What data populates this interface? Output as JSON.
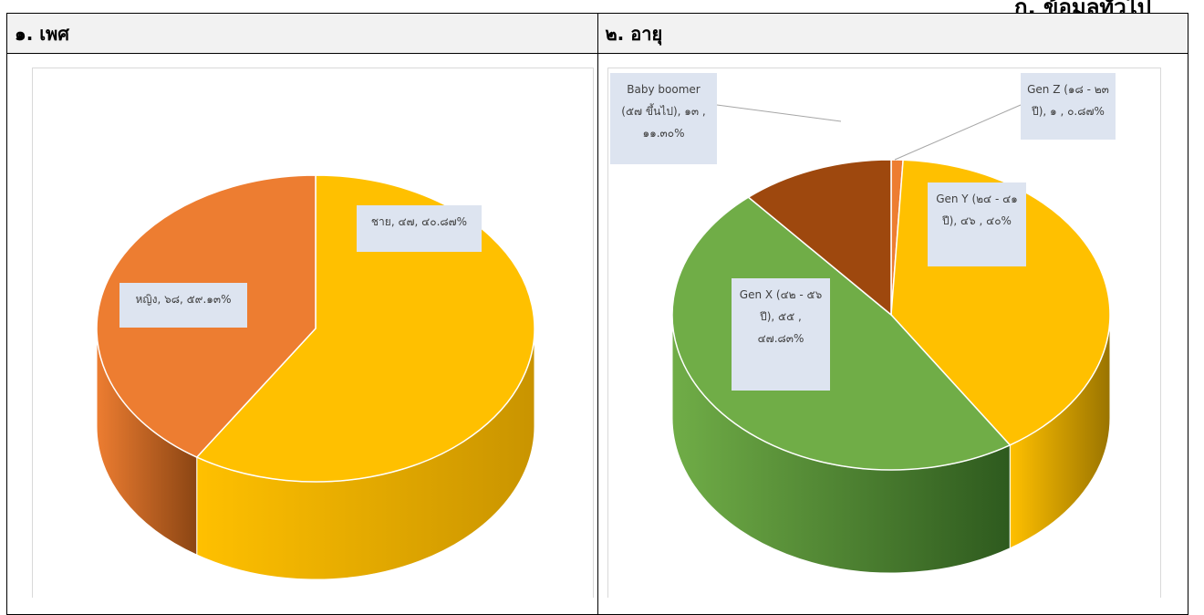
{
  "page": {
    "top_right_text": "ก. ข้อมูลทั่วไป"
  },
  "panels": [
    {
      "heading": "๑. เพศ"
    },
    {
      "heading": "๒. อายุ"
    }
  ],
  "chart_data": [
    {
      "type": "pie",
      "style": "3d",
      "labels": [
        "หญิง",
        "ชาย"
      ],
      "values": [
        68,
        47
      ],
      "percent_labels": [
        "๕๙.๑๓%",
        "๔๐.๘๗%"
      ],
      "data_labels": [
        "หญิง, ๖๘, ๕๙.๑๓%",
        "ชาย, ๔๗, ๔๐.๘๗%"
      ],
      "colors": [
        "#FFC000",
        "#ED7D31"
      ],
      "side_colors": [
        "#C99400",
        "#8B4513"
      ]
    },
    {
      "type": "pie",
      "style": "3d",
      "labels": [
        "Gen Z (๑๘ - ๒๓ ปี)",
        "Gen Y (๒๔ - ๔๑ ปี)",
        "Gen X (๔๒ - ๕๖ ปี)",
        "Baby boomer (๕๗ ขึ้นไป)"
      ],
      "values": [
        1,
        46,
        55,
        13
      ],
      "percent_labels": [
        "๐.๘๗%",
        "๔๐%",
        "๔๗.๘๓%",
        "๑๑.๓๐%"
      ],
      "data_labels": [
        [
          "Gen Z (๑๘ - ๒๓",
          "ปี), ๑ , ๐.๘๗%"
        ],
        [
          "Gen Y (๒๔ - ๔๑",
          "ปี), ๔๖ , ๔๐%"
        ],
        [
          "Gen X (๔๒ - ๕๖",
          "ปี), ๕๕ ,",
          "๔๗.๘๓%"
        ],
        [
          "Baby boomer",
          "(๕๗ ขึ้นไป), ๑๓ ,",
          "๑๑.๓๐%"
        ]
      ],
      "colors": [
        "#ED7D31",
        "#FFC000",
        "#70AD47",
        "#9E480E"
      ],
      "side_colors": [
        "#8B4513",
        "#9A7400",
        "#2E5A1E",
        "#5A2A08"
      ]
    }
  ]
}
